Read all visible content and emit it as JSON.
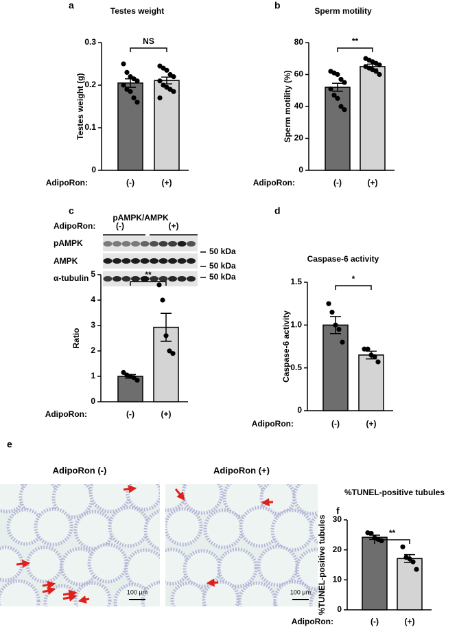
{
  "chart_data": [
    {
      "type": "bar",
      "panel": "a",
      "title": "Testes weight",
      "y_label": "Testes weight (g)",
      "x_label": "AdipoRon:",
      "significance": "NS",
      "categories": [
        "(-)",
        "(+)"
      ],
      "values": [
        0.205,
        0.211
      ],
      "errors": [
        0.01,
        0.008
      ],
      "points": [
        [
          0.25,
          0.23,
          0.22,
          0.215,
          0.21,
          0.2,
          0.19,
          0.185,
          0.17,
          0.16
        ],
        [
          0.245,
          0.24,
          0.235,
          0.225,
          0.22,
          0.21,
          0.2,
          0.195,
          0.19,
          0.185,
          0.17
        ]
      ],
      "colors": [
        "#6e6e6e",
        "#d4d4d4"
      ],
      "ylim": [
        0,
        0.3
      ],
      "yticks": [
        0,
        0.1,
        0.2,
        0.3
      ]
    },
    {
      "type": "bar",
      "panel": "b",
      "title": "Sperm motility",
      "y_label": "Sperm motility (%)",
      "x_label": "AdipoRon:",
      "significance": "**",
      "categories": [
        "(-)",
        "(+)"
      ],
      "values": [
        52,
        65
      ],
      "errors": [
        2.5,
        1.5
      ],
      "points": [
        [
          62,
          61,
          60,
          57,
          55,
          51,
          47,
          45,
          40,
          38
        ],
        [
          70,
          69,
          68,
          67,
          66,
          65,
          64,
          63,
          62,
          60
        ]
      ],
      "colors": [
        "#6e6e6e",
        "#d4d4d4"
      ],
      "ylim": [
        0,
        80
      ],
      "yticks": [
        0,
        20,
        40,
        60,
        80
      ]
    },
    {
      "type": "bar",
      "panel": "c",
      "title": "pAMPK/AMPK",
      "y_label": "Ratio",
      "x_label": "AdipoRon:",
      "significance": "**",
      "categories": [
        "(-)",
        "(+)"
      ],
      "values": [
        1.0,
        2.93
      ],
      "errors": [
        0.07,
        0.55
      ],
      "points": [
        [
          1.15,
          1.05,
          1.0,
          0.95,
          0.85
        ],
        [
          4.6,
          4.0,
          2.6,
          2.0,
          1.9
        ]
      ],
      "colors": [
        "#6e6e6e",
        "#d4d4d4"
      ],
      "ylim": [
        0,
        5
      ],
      "yticks": [
        0,
        1,
        2,
        3,
        4,
        5
      ]
    },
    {
      "type": "bar",
      "panel": "d",
      "title": "Caspase-6 activity",
      "y_label": "Caspase-6 activity",
      "x_label": "AdipoRon:",
      "significance": "*",
      "categories": [
        "(-)",
        "(+)"
      ],
      "values": [
        1.0,
        0.65
      ],
      "errors": [
        0.1,
        0.045
      ],
      "points": [
        [
          1.25,
          1.15,
          1.0,
          0.95,
          0.8
        ],
        [
          0.72,
          0.72,
          0.65,
          0.63,
          0.57
        ]
      ],
      "colors": [
        "#6e6e6e",
        "#d4d4d4"
      ],
      "ylim": [
        0,
        1.5
      ],
      "yticks": [
        0,
        0.5,
        {
          "value": 1,
          "label": "1.0"
        },
        1.5
      ]
    },
    {
      "type": "bar",
      "panel": "f",
      "title": "%TUNEL-positive tubules",
      "y_label": "%TUNEL-positive tubules",
      "x_label": "AdipoRon:",
      "significance": "**",
      "categories": [
        "(-)",
        "(+)"
      ],
      "values": [
        24.2,
        17.1
      ],
      "errors": [
        0.7,
        1.3
      ],
      "points": [
        [
          25.7,
          25.5,
          24,
          23.5,
          23
        ],
        [
          21,
          17.5,
          17,
          16,
          13.5
        ]
      ],
      "colors": [
        "#6e6e6e",
        "#d4d4d4"
      ],
      "ylim": [
        0,
        30
      ],
      "yticks": [
        0,
        10,
        20,
        30
      ]
    }
  ],
  "blot": {
    "header": "AdipoRon:",
    "groups": [
      "(-)",
      "(+)"
    ],
    "rows": [
      "pAMPK",
      "AMPK",
      "α-tubulin"
    ],
    "markers": [
      "50 kDa",
      "50 kDa",
      "50 kDa"
    ]
  },
  "micrographs": {
    "panel": "e",
    "images": [
      {
        "title": "AdipoRon (-)",
        "scale_bar": "100 μm"
      },
      {
        "title": "AdipoRon (+)",
        "scale_bar": "100 μm"
      }
    ]
  }
}
